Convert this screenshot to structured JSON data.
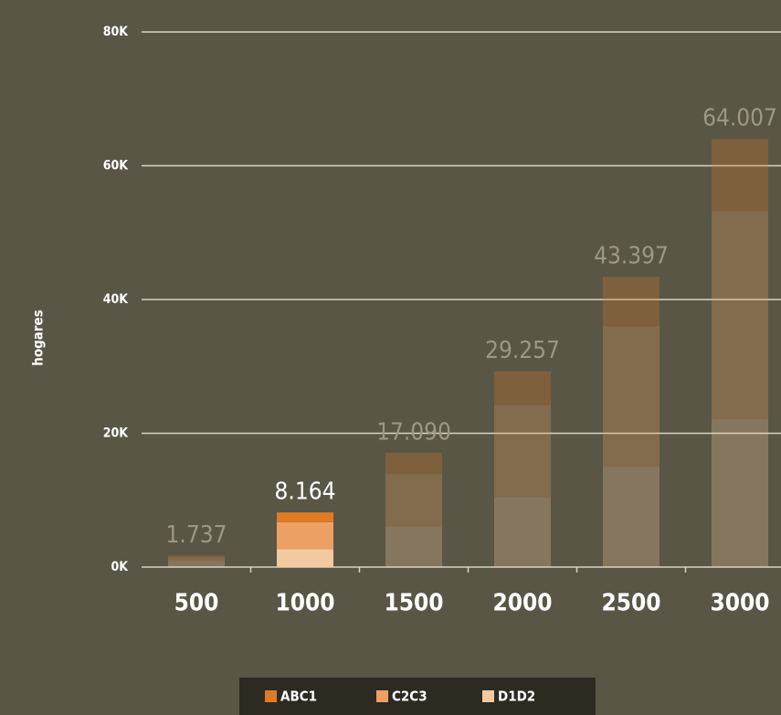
{
  "chart_data": {
    "type": "stacked_bar",
    "y_label": "hogares",
    "categories": [
      "500",
      "1000",
      "1500",
      "2000",
      "2500",
      "3000"
    ],
    "series": [
      {
        "name": "D1D2",
        "color": "#f3c9a0",
        "values": [
          900,
          2700,
          6000,
          10400,
          15000,
          22100
        ]
      },
      {
        "name": "C2C3",
        "color": "#eca063",
        "values": [
          600,
          4000,
          7900,
          13800,
          21000,
          31100
        ]
      },
      {
        "name": "ABC1",
        "color": "#e07b24",
        "values": [
          237,
          1464,
          3190,
          5057,
          7397,
          10807
        ]
      }
    ],
    "totals": {
      "values": [
        1737,
        8164,
        17090,
        29257,
        43397,
        64007
      ],
      "value_labels": [
        "1.737",
        "8.164",
        "17.090",
        "29.257",
        "43.397",
        "64.007"
      ]
    },
    "highlight": "1000",
    "ylim": [
      0,
      80000
    ],
    "yticks": [
      {
        "value": 0,
        "label": "0K"
      },
      {
        "value": 20000,
        "label": "20K"
      },
      {
        "value": 40000,
        "label": "40K"
      },
      {
        "value": 60000,
        "label": "60K"
      },
      {
        "value": 80000,
        "label": "80K"
      }
    ],
    "grid": true
  }
}
